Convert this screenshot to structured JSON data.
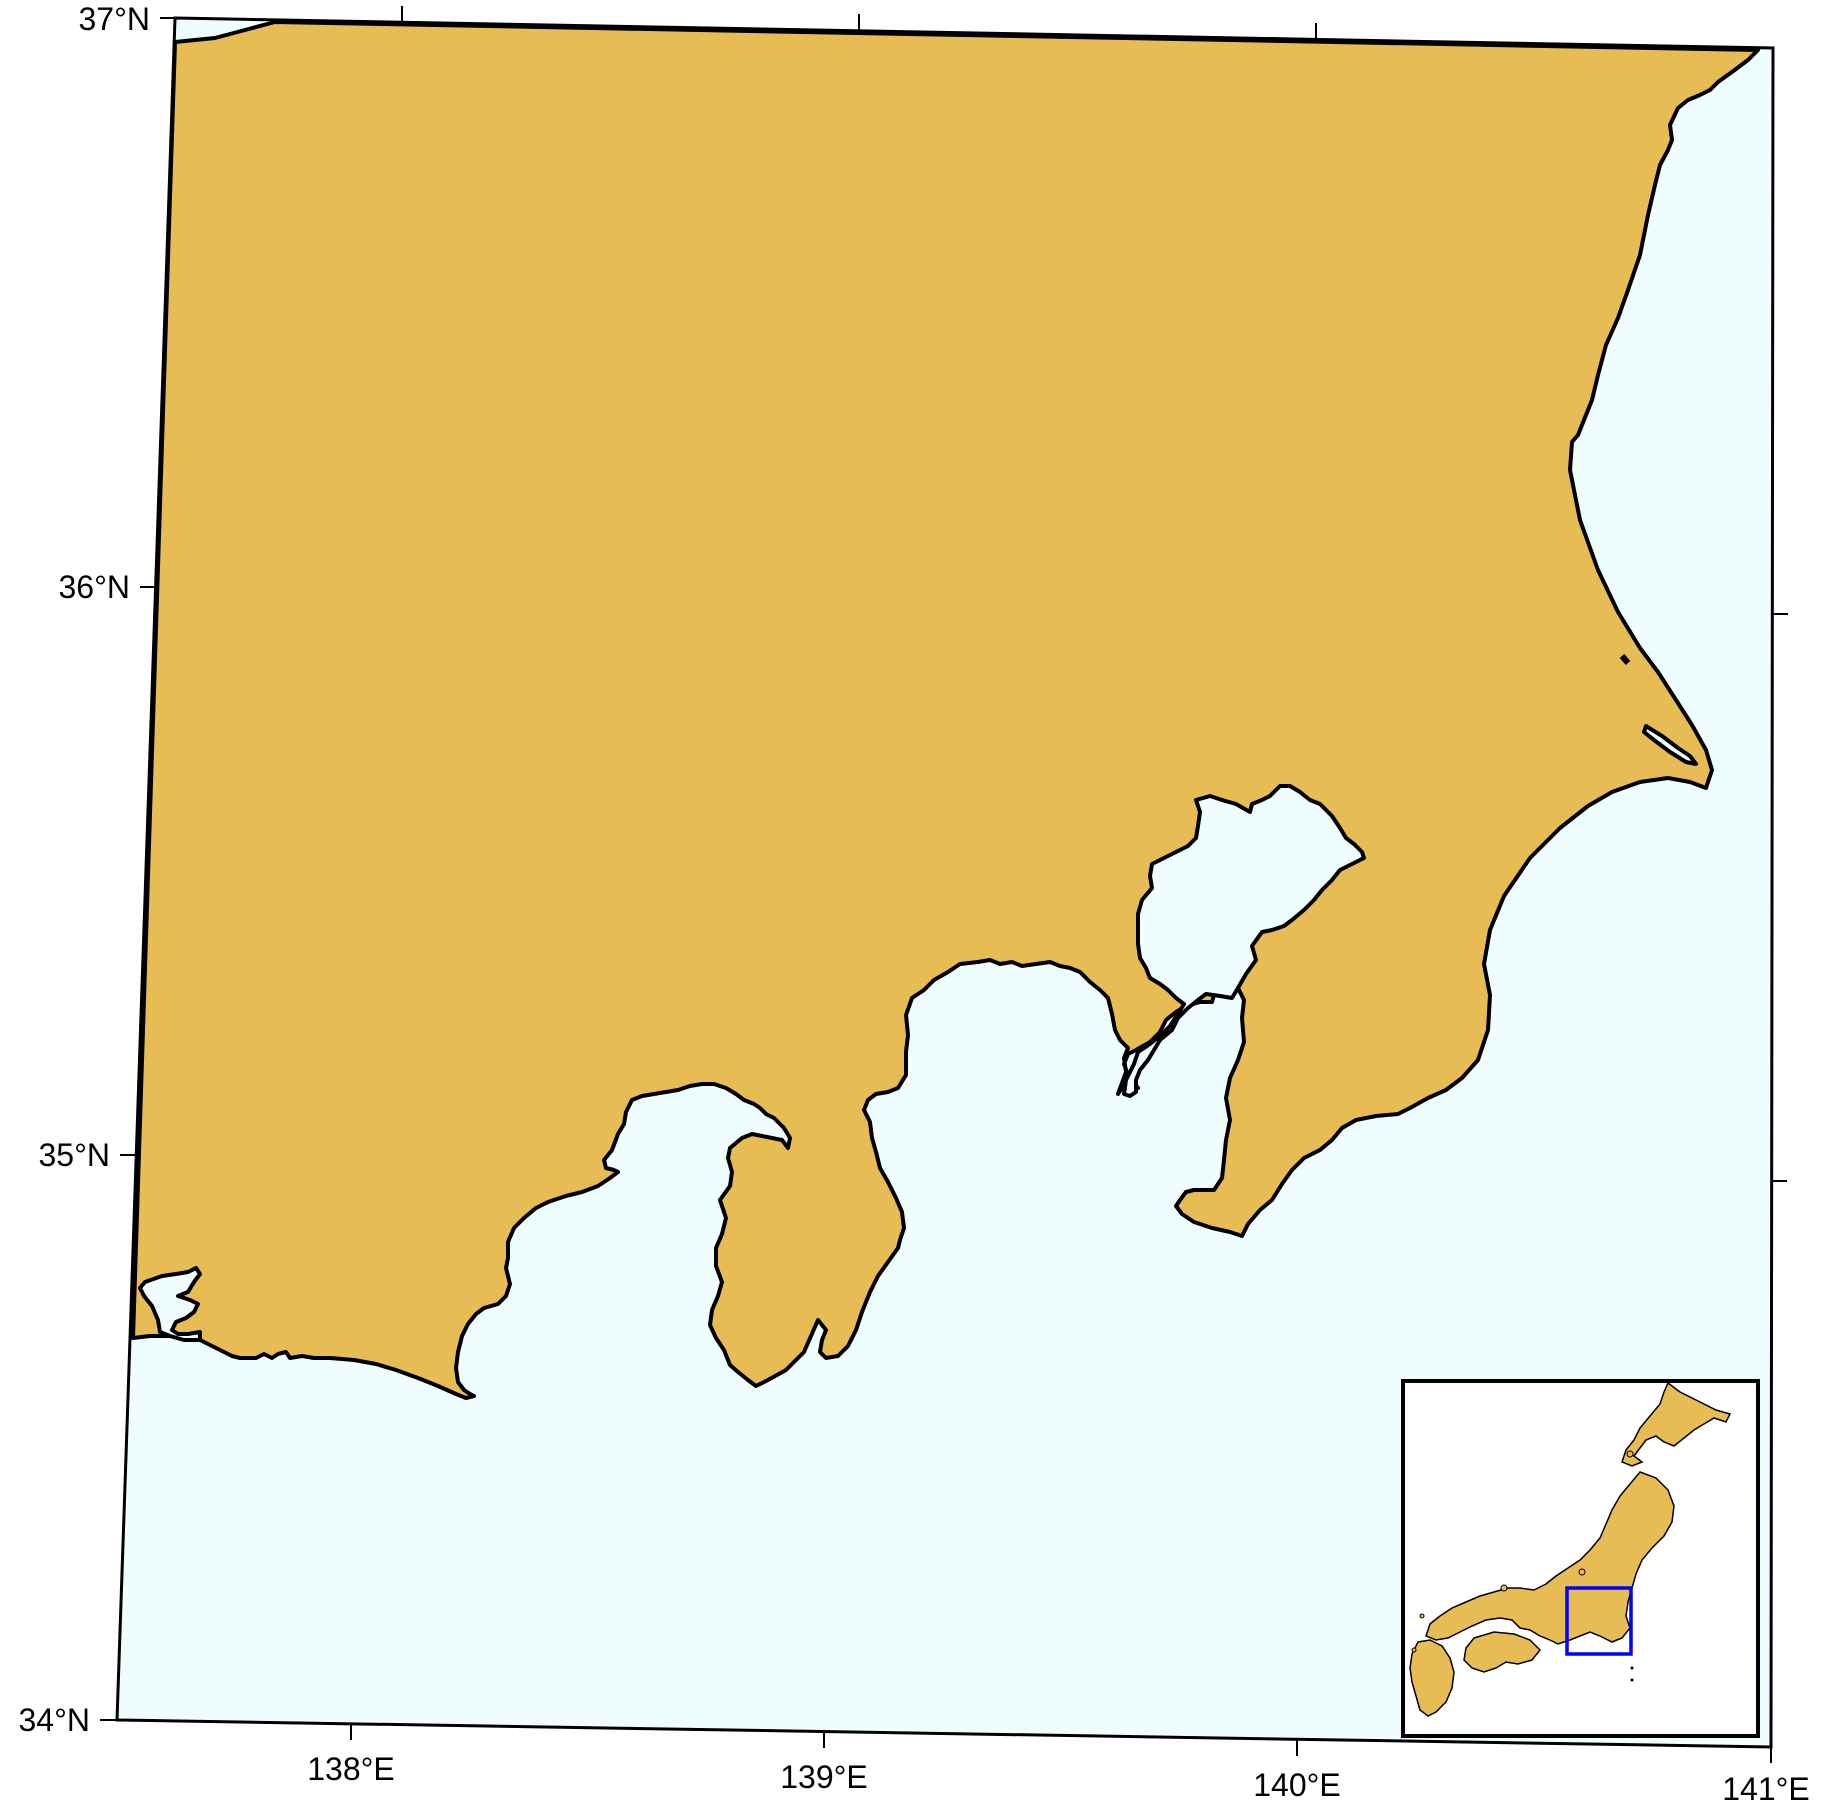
{
  "map": {
    "region": "Kanto / Tokai coast, central Honshu, Japan",
    "projection": "conic",
    "lon_range": [
      137.5,
      141
    ],
    "lat_range": [
      34,
      37
    ],
    "colors": {
      "land": "#E8BC55",
      "water": "#EFFDFE",
      "coastline": "#000000",
      "frame": "#000000",
      "inset_box": "#0000FF",
      "inset_background": "#FFFFFF"
    },
    "lat_labels": [
      "37°N",
      "36°N",
      "35°N",
      "34°N"
    ],
    "lon_labels": [
      "138°E",
      "139°E",
      "140°E",
      "141°E"
    ],
    "inset": {
      "description": "overview map of Japan",
      "highlight_color": "#0000FF",
      "highlight_region": {
        "lon": [
          137.5,
          141
        ],
        "lat": [
          34,
          37
        ]
      }
    }
  }
}
